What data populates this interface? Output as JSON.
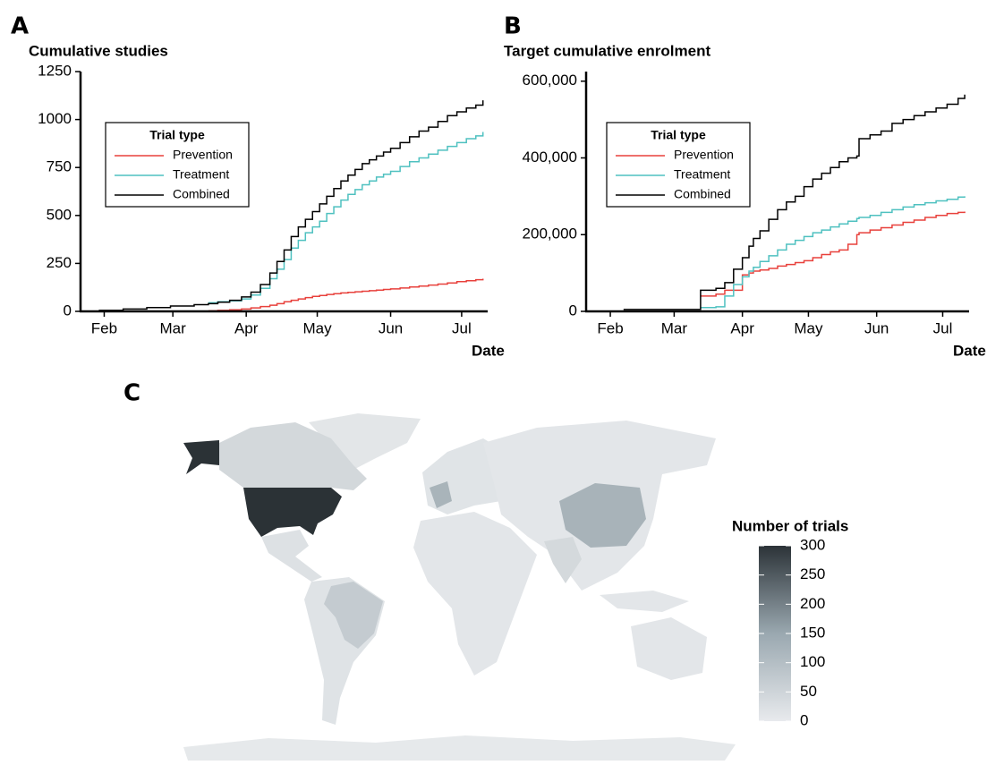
{
  "chart_data": [
    {
      "type": "line",
      "panel": "A",
      "title": "Cumulative studies",
      "xlabel": "Date",
      "line_style": "step",
      "legend_title": "Trial type",
      "legend": "upper left",
      "xlim": [
        22,
        194
      ],
      "xticks": [
        {
          "value": 32,
          "label": "Feb"
        },
        {
          "value": 61,
          "label": "Mar"
        },
        {
          "value": 92,
          "label": "Apr"
        },
        {
          "value": 122,
          "label": "May"
        },
        {
          "value": 153,
          "label": "Jun"
        },
        {
          "value": 183,
          "label": "Jul"
        }
      ],
      "ylim": [
        0,
        1250
      ],
      "yticks": [
        0,
        250,
        500,
        750,
        1000,
        1250
      ],
      "x": [
        23,
        30,
        40,
        50,
        60,
        70,
        76,
        80,
        85,
        90,
        94,
        98,
        102,
        105,
        108,
        111,
        114,
        117,
        120,
        123,
        126,
        129,
        132,
        135,
        138,
        141,
        144,
        147,
        150,
        153,
        157,
        161,
        165,
        169,
        173,
        177,
        181,
        185,
        189,
        192
      ],
      "series": [
        {
          "name": "Prevention",
          "color": "#e8413c",
          "values": [
            null,
            null,
            null,
            null,
            null,
            null,
            3,
            5,
            8,
            12,
            18,
            25,
            32,
            40,
            50,
            58,
            65,
            72,
            78,
            83,
            88,
            92,
            96,
            99,
            102,
            105,
            108,
            111,
            114,
            117,
            122,
            127,
            132,
            137,
            142,
            148,
            155,
            160,
            165,
            170
          ]
        },
        {
          "name": "Treatment",
          "color": "#4fc1c0",
          "values": [
            null,
            null,
            null,
            null,
            null,
            null,
            45,
            50,
            55,
            65,
            85,
            120,
            170,
            220,
            270,
            330,
            370,
            410,
            440,
            470,
            510,
            545,
            580,
            610,
            635,
            660,
            680,
            700,
            715,
            730,
            755,
            780,
            800,
            820,
            840,
            860,
            880,
            900,
            915,
            935
          ]
        },
        {
          "name": "Combined",
          "color": "#000000",
          "values": [
            0,
            5,
            12,
            20,
            28,
            35,
            40,
            48,
            58,
            75,
            100,
            140,
            200,
            260,
            320,
            390,
            440,
            480,
            520,
            560,
            600,
            640,
            680,
            710,
            740,
            770,
            790,
            810,
            830,
            850,
            880,
            910,
            940,
            960,
            990,
            1020,
            1040,
            1060,
            1075,
            1100
          ]
        }
      ]
    },
    {
      "type": "line",
      "panel": "B",
      "title": "Target cumulative enrolment",
      "xlabel": "Date",
      "line_style": "step",
      "legend_title": "Trial type",
      "legend": "upper left",
      "xlim": [
        21,
        195
      ],
      "xticks": [
        {
          "value": 32,
          "label": "Feb"
        },
        {
          "value": 61,
          "label": "Mar"
        },
        {
          "value": 92,
          "label": "Apr"
        },
        {
          "value": 122,
          "label": "May"
        },
        {
          "value": 153,
          "label": "Jun"
        },
        {
          "value": 183,
          "label": "Jul"
        }
      ],
      "ylim": [
        0,
        625000
      ],
      "yticks": [
        0,
        {
          "value": 200000,
          "label": "200,000"
        },
        {
          "value": 400000,
          "label": "400,000"
        },
        {
          "value": 600000,
          "label": "600,000"
        }
      ],
      "x": [
        38,
        50,
        60,
        72,
        73,
        80,
        84,
        88,
        92,
        95,
        97,
        100,
        104,
        108,
        112,
        116,
        120,
        124,
        128,
        132,
        136,
        140,
        144,
        145,
        150,
        155,
        160,
        165,
        170,
        175,
        180,
        185,
        190,
        193
      ],
      "series": [
        {
          "name": "Prevention",
          "color": "#e8413c",
          "values": [
            null,
            null,
            null,
            null,
            40000,
            45000,
            55000,
            55000,
            95000,
            100000,
            105000,
            108000,
            112000,
            118000,
            122000,
            127000,
            132000,
            140000,
            148000,
            155000,
            160000,
            175000,
            200000,
            205000,
            212000,
            218000,
            225000,
            232000,
            238000,
            245000,
            250000,
            255000,
            258000,
            260000
          ]
        },
        {
          "name": "Treatment",
          "color": "#4fc1c0",
          "values": [
            null,
            null,
            null,
            null,
            10000,
            12000,
            40000,
            70000,
            90000,
            105000,
            115000,
            130000,
            145000,
            160000,
            175000,
            185000,
            195000,
            205000,
            212000,
            220000,
            228000,
            235000,
            242000,
            245000,
            250000,
            258000,
            265000,
            272000,
            278000,
            283000,
            288000,
            292000,
            298000,
            300000
          ]
        },
        {
          "name": "Combined",
          "color": "#000000",
          "values": [
            5000,
            5000,
            5000,
            5000,
            55000,
            60000,
            75000,
            110000,
            140000,
            170000,
            190000,
            210000,
            240000,
            265000,
            285000,
            300000,
            325000,
            345000,
            360000,
            375000,
            390000,
            400000,
            405000,
            450000,
            460000,
            470000,
            490000,
            500000,
            510000,
            520000,
            530000,
            540000,
            555000,
            565000
          ]
        }
      ]
    },
    {
      "type": "choropleth",
      "panel": "C",
      "legend_title": "Number of trials",
      "colorscale": [
        "#e8eaed",
        "#9aa8b0",
        "#2c3338"
      ],
      "clim": [
        0,
        300
      ],
      "cticks": [
        0,
        50,
        100,
        150,
        200,
        250,
        300
      ]
    }
  ]
}
